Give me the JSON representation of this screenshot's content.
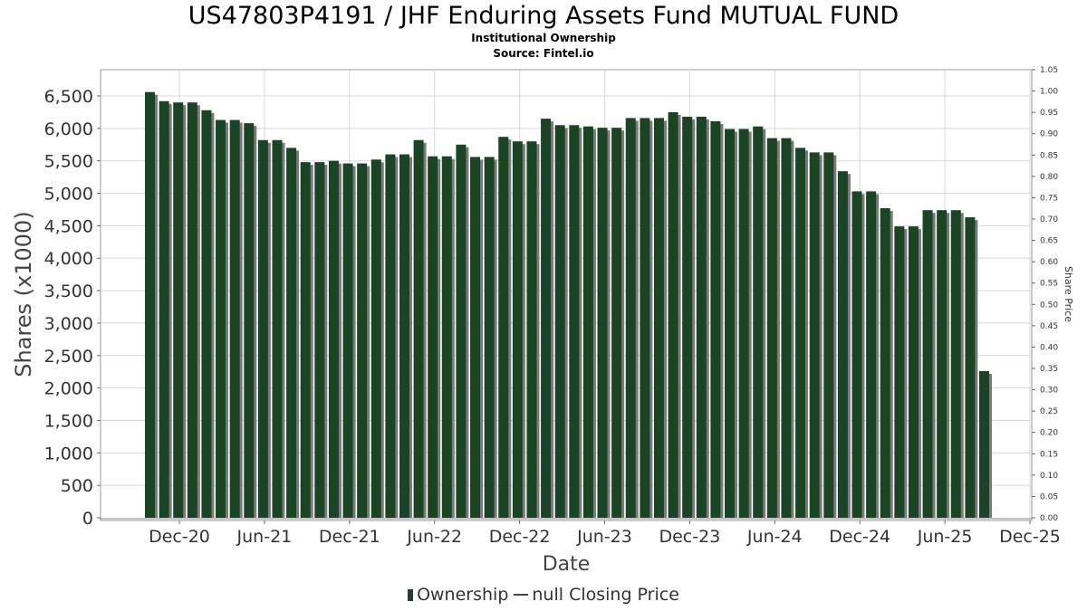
{
  "title": "US47803P4191 / JHF Enduring Assets Fund MUTUAL FUND",
  "subtitle": "Institutional Ownership",
  "source": "Source: Fintel.io",
  "legend": {
    "ownership": "Ownership",
    "price": "null Closing Price"
  },
  "colors": {
    "bar": "#1b4425",
    "bar_shadow": "#7a7a7a",
    "grid": "#d8d8d8"
  },
  "chart_data": {
    "type": "bar",
    "title": "US47803P4191 / JHF Enduring Assets Fund MUTUAL FUND",
    "subtitle": "Institutional Ownership",
    "xlabel": "Date",
    "ylabel": "Shares (x1000)",
    "y2label": "Share Price",
    "ylim": [
      0,
      6700
    ],
    "y2lim": [
      0,
      1.05
    ],
    "yticks": [
      "0",
      "500",
      "1,000",
      "1,500",
      "2,000",
      "2,500",
      "3,000",
      "3,500",
      "4,000",
      "4,500",
      "5,000",
      "5,500",
      "6,000",
      "6,500"
    ],
    "y2ticks": [
      "0.00",
      "0.05",
      "0.10",
      "0.15",
      "0.20",
      "0.25",
      "0.30",
      "0.35",
      "0.40",
      "0.45",
      "0.50",
      "0.55",
      "0.60",
      "0.65",
      "0.70",
      "0.75",
      "0.80",
      "0.85",
      "0.90",
      "0.95",
      "1.00",
      "1.05"
    ],
    "xticks": [
      "Dec-20",
      "Jun-21",
      "Dec-21",
      "Jun-22",
      "Dec-22",
      "Jun-23",
      "Dec-23",
      "Jun-24",
      "Dec-24",
      "Jun-25",
      "Dec-25"
    ],
    "grid": true,
    "legend_position": "bottom",
    "series": [
      {
        "name": "Ownership",
        "values": [
          6560,
          6420,
          6400,
          6400,
          6280,
          6130,
          6130,
          6080,
          5820,
          5820,
          5700,
          5480,
          5480,
          5500,
          5460,
          5460,
          5520,
          5600,
          5600,
          5820,
          5570,
          5570,
          5750,
          5560,
          5560,
          5870,
          5800,
          5800,
          6150,
          6050,
          6050,
          6030,
          6010,
          6010,
          6160,
          6160,
          6160,
          6250,
          6180,
          6180,
          6110,
          5990,
          5990,
          6030,
          5850,
          5850,
          5700,
          5630,
          5630,
          5340,
          5030,
          5030,
          4770,
          4490,
          4490,
          4740,
          4740,
          4740,
          4630,
          2260
        ]
      }
    ]
  }
}
